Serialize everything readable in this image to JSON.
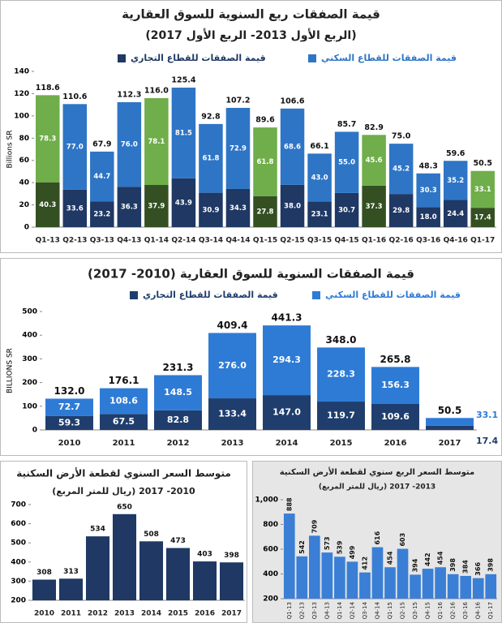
{
  "chart_data": [
    {
      "type": "bar",
      "stacked": true,
      "title": "قيمة الصفقات ربع السنوية للسوق العقارية",
      "subtitle": "(الربع الأول 2013- الربع الأول 2017)",
      "y_label": "Billions SR",
      "categories": [
        "Q1-13",
        "Q2-13",
        "Q3-13",
        "Q4-13",
        "Q1-14",
        "Q2-14",
        "Q3-14",
        "Q4-14",
        "Q1-15",
        "Q2-15",
        "Q3-15",
        "Q4-15",
        "Q1-16",
        "Q2-16",
        "Q3-16",
        "Q4-16",
        "Q1-17"
      ],
      "series": [
        {
          "name": "قيمة الصفقات للقطاع التجاري",
          "color": "#1f3864",
          "colors": [
            "#344f22",
            "#1f3864",
            "#1f3864",
            "#1f3864",
            "#344f22",
            "#1f3864",
            "#1f3864",
            "#1f3864",
            "#344f22",
            "#1f3864",
            "#1f3864",
            "#1f3864",
            "#344f22",
            "#1f3864",
            "#1f3864",
            "#1f3864",
            "#344f22"
          ],
          "values": [
            40.3,
            33.6,
            23.2,
            36.3,
            37.9,
            43.9,
            30.9,
            34.3,
            27.8,
            38.0,
            23.1,
            30.7,
            37.3,
            29.8,
            18.0,
            24.4,
            17.4
          ],
          "value_labels": [
            "40.3",
            "33.6",
            "23.2",
            "36.3",
            "37.9",
            "43.9",
            "30.9",
            "34.3",
            "27.8",
            "38.0",
            "23.1",
            "30.7",
            "37.3",
            "29.8",
            "18.0",
            "24.4",
            "17.4"
          ]
        },
        {
          "name": "قيمة الصفقات للقطاع السكني",
          "color": "#2e75c6",
          "colors": [
            "#6fae4a",
            "#2e75c6",
            "#2e75c6",
            "#2e75c6",
            "#6fae4a",
            "#2e75c6",
            "#2e75c6",
            "#2e75c6",
            "#6fae4a",
            "#2e75c6",
            "#2e75c6",
            "#2e75c6",
            "#6fae4a",
            "#2e75c6",
            "#2e75c6",
            "#2e75c6",
            "#6fae4a"
          ],
          "values": [
            78.3,
            77.0,
            44.7,
            76.0,
            78.1,
            81.5,
            61.8,
            72.9,
            61.8,
            68.6,
            43.0,
            55.0,
            45.6,
            45.2,
            30.3,
            35.2,
            33.1
          ],
          "value_labels": [
            "78.3",
            "77.0",
            "44.7",
            "76.0",
            "78.1",
            "81.5",
            "61.8",
            "72.9",
            "61.8",
            "68.6",
            "43.0",
            "55.0",
            "45.6",
            "45.2",
            "30.3",
            "35.2",
            "33.1"
          ]
        }
      ],
      "totals": [
        118.6,
        110.6,
        67.9,
        112.3,
        116.0,
        125.4,
        92.8,
        107.2,
        89.6,
        106.6,
        66.1,
        85.7,
        82.9,
        75.0,
        48.3,
        59.6,
        50.5
      ],
      "total_labels": [
        "118.6",
        "110.6",
        "67.9",
        "112.3",
        "116.0",
        "125.4",
        "92.8",
        "107.2",
        "89.6",
        "106.6",
        "66.1",
        "85.7",
        "82.9",
        "75.0",
        "48.3",
        "59.6",
        "50.5"
      ],
      "ylim": [
        0,
        140
      ],
      "yticks": [
        0,
        20,
        40,
        60,
        80,
        100,
        120,
        140
      ]
    },
    {
      "type": "bar",
      "stacked": true,
      "title": "قيمة الصفقات السنوية للسوق العقارية (2010- 2017)",
      "y_label": "BILLIONS SR",
      "categories": [
        "2010",
        "2011",
        "2012",
        "2013",
        "2014",
        "2015",
        "2016",
        "2017"
      ],
      "series": [
        {
          "name": "قيمة الصفقات للقطاع التجاري",
          "color": "#1f3e6e",
          "values": [
            59.3,
            67.5,
            82.8,
            133.4,
            147.0,
            119.7,
            109.6,
            17.4
          ],
          "value_labels": [
            "59.3",
            "67.5",
            "82.8",
            "133.4",
            "147.0",
            "119.7",
            "109.6",
            "17.4"
          ]
        },
        {
          "name": "قيمة الصفقات للقطاع السكني",
          "color": "#2e7bd6",
          "values": [
            72.7,
            108.6,
            148.5,
            276.0,
            294.3,
            228.3,
            156.3,
            33.1
          ],
          "value_labels": [
            "72.7",
            "108.6",
            "148.5",
            "276.0",
            "294.3",
            "228.3",
            "156.3",
            "33.1"
          ]
        }
      ],
      "totals": [
        132.0,
        176.1,
        231.3,
        409.4,
        441.3,
        348.0,
        265.8,
        50.5
      ],
      "total_labels": [
        "132.0",
        "176.1",
        "231.3",
        "409.4",
        "441.3",
        "348.0",
        "265.8",
        "50.5"
      ],
      "ylim": [
        0,
        500
      ],
      "yticks": [
        0,
        100,
        200,
        300,
        400,
        500
      ]
    },
    {
      "type": "bar",
      "title": "متوسط السعر السنوي لقطعة الأرض السكنية",
      "subtitle": "(ريال للمتر المربع) 2010- 2017",
      "categories": [
        "2010",
        "2011",
        "2012",
        "2013",
        "2014",
        "2015",
        "2016",
        "2017"
      ],
      "values": [
        308,
        313,
        534,
        650,
        508,
        473,
        403,
        398
      ],
      "color": "#1f3864",
      "ylim": [
        200,
        700
      ],
      "yticks": [
        200,
        300,
        400,
        500,
        600,
        700
      ]
    },
    {
      "type": "bar",
      "title": "متوسط السعر الربع سنوي لقطعة الأرض السكنية",
      "subtitle": "(ريال للمتر المربع) 2013- 2017",
      "categories": [
        "Q1-13",
        "Q2-13",
        "Q3-13",
        "Q4-13",
        "Q1-14",
        "Q2-14",
        "Q3-14",
        "Q4-14",
        "Q1-15",
        "Q2-15",
        "Q3-15",
        "Q4-15",
        "Q1-16",
        "Q2-16",
        "Q3-16",
        "Q4-16",
        "Q1-17"
      ],
      "values": [
        888,
        542,
        709,
        573,
        539,
        499,
        412,
        616,
        454,
        603,
        394,
        442,
        454,
        398,
        384,
        366,
        398
      ],
      "color": "#3a7fd5",
      "ylim": [
        200,
        1000
      ],
      "yticks": [
        200,
        400,
        600,
        800,
        {
          "value": 1000,
          "label": "1,000"
        }
      ]
    }
  ]
}
